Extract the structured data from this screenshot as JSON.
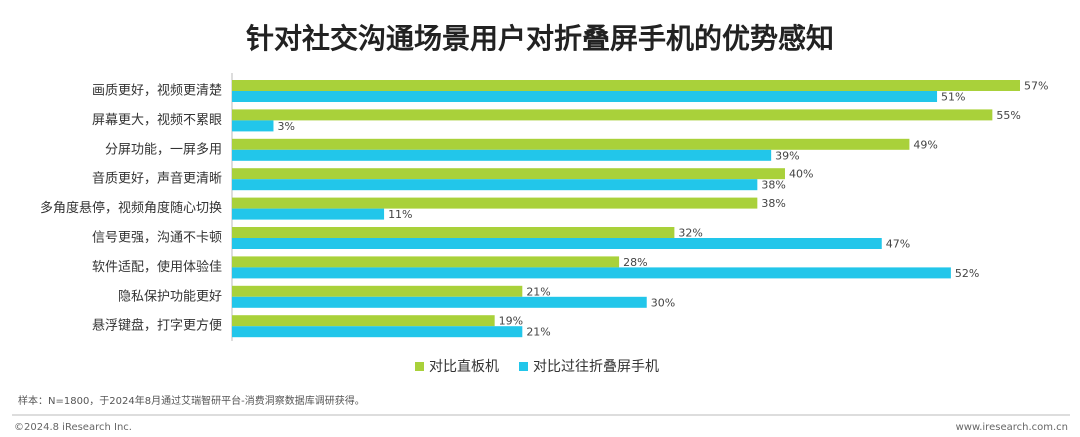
{
  "chart_data": {
    "type": "hbar",
    "title": "针对社交沟通场景用户对折叠屏手机的优势感知",
    "categories": [
      "画质更好，视频更清楚",
      "屏幕更大，视频不累眼",
      "分屏功能，一屏多用",
      "音质更好，声音更清晰",
      "多角度悬停，视频角度随心切换",
      "信号更强，沟通不卡顿",
      "软件适配，使用体验佳",
      "隐私保护功能更好",
      "悬浮键盘，打字更方便"
    ],
    "series": [
      {
        "name": "对比直板机",
        "color": "#a9d13a",
        "values": [
          57,
          55,
          49,
          40,
          38,
          32,
          28,
          21,
          19
        ],
        "value_labels": [
          "57%",
          "55%",
          "49%",
          "40%",
          "38%",
          "32%",
          "28%",
          "21%",
          "19%"
        ]
      },
      {
        "name": "对比过往折叠屏手机",
        "color": "#22c6ea",
        "values": [
          51,
          3,
          39,
          38,
          11,
          47,
          52,
          30,
          21
        ],
        "value_labels": [
          "51%",
          "3%",
          "39%",
          "38%",
          "11%",
          "47%",
          "52%",
          "30%",
          "21%"
        ]
      }
    ],
    "legend": "bottom"
  },
  "footer": {
    "note": "样本：N=1800，于2024年8月通过艾瑞智研平台-消费洞察数据库调研获得。",
    "copyright": "©2024.8 iResearch Inc.",
    "website": "www.iresearch.com.cn"
  }
}
